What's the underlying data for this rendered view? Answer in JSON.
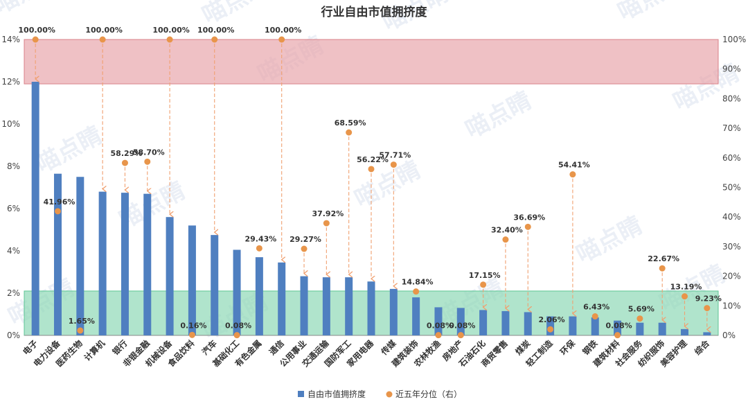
{
  "chart_data": {
    "type": "bar",
    "title": "行业自由市值拥挤度",
    "watermark": "喵点睛",
    "categories": [
      "电子",
      "电力设备",
      "医药生物",
      "计算机",
      "银行",
      "非银金融",
      "机械设备",
      "食品饮料",
      "汽车",
      "基础化工",
      "有色金属",
      "通信",
      "公用事业",
      "交通运输",
      "国防军工",
      "家用电器",
      "传媒",
      "建筑装饰",
      "农林牧渔",
      "房地产",
      "石油石化",
      "商贸零售",
      "煤炭",
      "轻工制造",
      "环保",
      "钢铁",
      "建筑材料",
      "社会服务",
      "纺织服饰",
      "美容护理",
      "综合"
    ],
    "series": [
      {
        "name": "自由市值拥挤度",
        "axis": "left",
        "color": "#4f7fc0",
        "values": [
          12.0,
          7.65,
          7.5,
          6.8,
          6.75,
          6.7,
          5.6,
          5.2,
          4.75,
          4.05,
          3.7,
          3.45,
          2.8,
          2.75,
          2.75,
          2.55,
          2.2,
          1.8,
          1.33,
          1.3,
          1.2,
          1.15,
          1.1,
          0.9,
          0.9,
          0.85,
          0.7,
          0.6,
          0.6,
          0.3,
          0.15
        ]
      },
      {
        "name": "近五年分位（右）",
        "axis": "right",
        "color": "#e8954a",
        "values": [
          100.0,
          41.96,
          1.65,
          100.0,
          58.29,
          58.7,
          100.0,
          0.16,
          100.0,
          0.08,
          29.43,
          100.0,
          29.27,
          37.92,
          68.59,
          56.22,
          57.71,
          14.84,
          0.08,
          0.08,
          17.15,
          32.4,
          36.69,
          2.06,
          54.41,
          6.43,
          0.08,
          5.69,
          22.67,
          13.19,
          9.23
        ],
        "labels": [
          "100.00%",
          "41.96%",
          "1.65%",
          "100.00%",
          "58.29%",
          "58.70%",
          "100.00%",
          "0.16%",
          "100.00%",
          "0.08%",
          "29.43%",
          "100.00%",
          "29.27%",
          "37.92%",
          "68.59%",
          "56.22%",
          "57.71%",
          "14.84%",
          "0.08%",
          "0.08%",
          "17.15%",
          "32.40%",
          "36.69%",
          "2.06%",
          "54.41%",
          "6.43%",
          "0.08%",
          "5.69%",
          "22.67%",
          "13.19%",
          "9.23%"
        ]
      }
    ],
    "left_axis": {
      "min": 0,
      "max": 14,
      "ticks": [
        "0%",
        "2%",
        "4%",
        "6%",
        "8%",
        "10%",
        "12%",
        "14%"
      ]
    },
    "right_axis": {
      "min": 0,
      "max": 100,
      "ticks": [
        "0%",
        "10%",
        "20%",
        "30%",
        "40%",
        "50%",
        "60%",
        "70%",
        "80%",
        "90%",
        "100%"
      ]
    },
    "bands": [
      {
        "name": "high",
        "from": 11.9,
        "to": 14,
        "color": "#e8a7ad"
      },
      {
        "name": "low",
        "from": 0,
        "to": 2.1,
        "color": "#8fd9b6"
      }
    ],
    "legend_position": "bottom",
    "grid": false
  }
}
